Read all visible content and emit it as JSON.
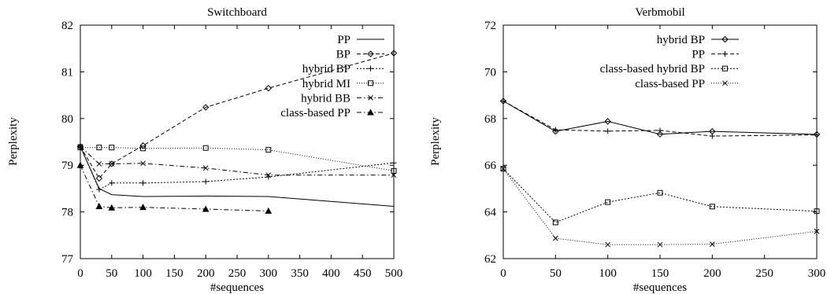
{
  "chart_data": [
    {
      "type": "line",
      "title": "Switchboard",
      "xlabel": "#sequences",
      "ylabel": "Perplexity",
      "xlim": [
        0,
        500
      ],
      "ylim": [
        77,
        82
      ],
      "xticks": [
        0,
        50,
        100,
        150,
        200,
        250,
        300,
        350,
        400,
        450,
        500
      ],
      "yticks": [
        77,
        78,
        79,
        80,
        81,
        82
      ],
      "grid": false,
      "legend_position": "top-right",
      "series": [
        {
          "name": "PP",
          "style": "solid",
          "marker": "none",
          "x": [
            0,
            30,
            50,
            100,
            200,
            300,
            500
          ],
          "y": [
            79.4,
            78.5,
            78.37,
            78.33,
            78.34,
            78.33,
            78.12
          ]
        },
        {
          "name": "BP",
          "style": "dashed",
          "marker": "diamond",
          "x": [
            0,
            30,
            50,
            100,
            200,
            300,
            500
          ],
          "y": [
            79.4,
            78.72,
            79.03,
            79.42,
            80.24,
            80.65,
            81.4
          ]
        },
        {
          "name": "hybrid BP",
          "style": "dotted",
          "marker": "plus",
          "x": [
            0,
            30,
            50,
            100,
            200,
            300,
            500
          ],
          "y": [
            79.4,
            78.48,
            78.62,
            78.62,
            78.65,
            78.75,
            79.05
          ]
        },
        {
          "name": "hybrid MI",
          "style": "dotted-fine",
          "marker": "square",
          "x": [
            0,
            30,
            50,
            100,
            200,
            300,
            500
          ],
          "y": [
            79.38,
            79.38,
            79.38,
            79.36,
            79.37,
            79.33,
            78.88
          ]
        },
        {
          "name": "hybrid BB",
          "style": "dashdot",
          "marker": "cross",
          "x": [
            0,
            30,
            50,
            100,
            200,
            300,
            500
          ],
          "y": [
            79.4,
            79.03,
            79.03,
            79.04,
            78.94,
            78.79,
            78.79
          ]
        },
        {
          "name": "class-based PP",
          "style": "dashdot",
          "marker": "triangle",
          "x": [
            0,
            30,
            50,
            100,
            200,
            300
          ],
          "y": [
            79.0,
            78.12,
            78.09,
            78.1,
            78.06,
            78.02
          ]
        }
      ]
    },
    {
      "type": "line",
      "title": "Verbmobil",
      "xlabel": "#sequences",
      "ylabel": "Perplexity",
      "xlim": [
        0,
        300
      ],
      "ylim": [
        62,
        72
      ],
      "xticks": [
        0,
        50,
        100,
        150,
        200,
        250,
        300
      ],
      "yticks": [
        62,
        64,
        66,
        68,
        70,
        72
      ],
      "grid": false,
      "legend_position": "top-right",
      "series": [
        {
          "name": "hybrid BP",
          "style": "solid",
          "marker": "diamond",
          "x": [
            0,
            50,
            100,
            150,
            200,
            300
          ],
          "y": [
            68.75,
            67.45,
            67.88,
            67.33,
            67.45,
            67.32
          ]
        },
        {
          "name": "PP",
          "style": "dashed",
          "marker": "plus",
          "x": [
            0,
            50,
            100,
            150,
            200,
            300
          ],
          "y": [
            68.75,
            67.52,
            67.46,
            67.49,
            67.25,
            67.3
          ]
        },
        {
          "name": "class-based hybrid BP",
          "style": "dotted",
          "marker": "square",
          "x": [
            0,
            50,
            100,
            150,
            200,
            300
          ],
          "y": [
            65.85,
            63.55,
            64.42,
            64.82,
            64.23,
            64.03
          ]
        },
        {
          "name": "class-based PP",
          "style": "dotted-fine",
          "marker": "cross",
          "x": [
            0,
            50,
            100,
            150,
            200,
            300
          ],
          "y": [
            65.85,
            62.87,
            62.6,
            62.6,
            62.62,
            63.17
          ]
        }
      ]
    }
  ]
}
